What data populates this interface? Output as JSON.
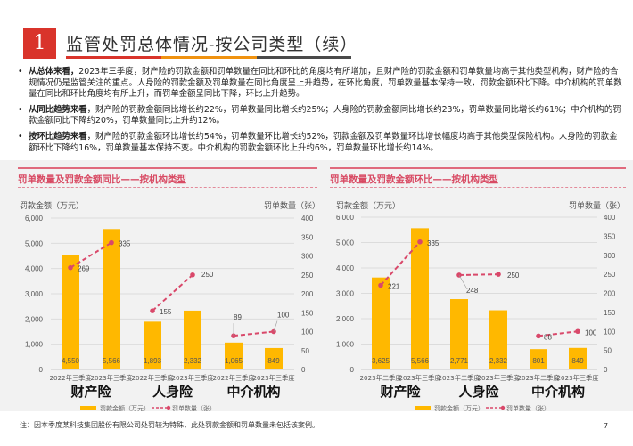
{
  "header": {
    "section_number": "1",
    "title": "监管处罚总体情况-按公司类型（续）",
    "bar_colors": [
      "#d9342b",
      "#f0920f",
      "#4a4a4a"
    ]
  },
  "bullets": [
    {
      "lead": "从总体来看，",
      "text": "2023年三季度，财产险的罚款金额和罚单数量在同比和环比的角度均有所增加，且财产险的罚款金额和罚单数量均高于其他类型机构，财产险的合规情况仍是监管关注的重点。人身险的罚款金额及罚单数量在同比角度呈上升趋势，在环比角度，罚单数量基本保持一致，罚款金额环比下降。中介机构的罚单数量在同比和环比角度均有所上升，而罚单金额呈同比下降，环比上升趋势。"
    },
    {
      "lead": "从同比趋势来看",
      "text": "，财产险的罚款金额同比增长约22%，罚单数量同比增长约25%；人身险的罚款金额同比增长约23%，罚单数量同比增长约61%；中介机构的罚款金额同比下降约20%，罚单数量同比上升约12%。"
    },
    {
      "lead": "按环比趋势来看",
      "text": "，财产险的罚款金额环比增长约54%，罚单数量环比增长约52%，罚款金额及罚单数量环比增长幅度均高于其他类型保险机构。人身险的罚款金额环比下降约16%，罚单数量基本保持不变。中介机构的罚款金额环比上升约6%，罚单数量环比增长约14%。"
    }
  ],
  "footer": {
    "note": "注：因本季度某科技集团股份有限公司处罚较为特殊，此处罚款金额和罚单数量未包括该案例。",
    "page_number": "7"
  },
  "colors": {
    "bar": "#ffb800",
    "line": "#d9486a",
    "title_pink": "#d84a63",
    "grid": "#dcdcdc"
  },
  "chart_data": [
    {
      "type": "bar+line",
      "title": "罚单数量及罚款金额同比——按机构类型",
      "ylabel_left": "罚款金额（万元）",
      "ylabel_right": "罚单数量（张）",
      "ylim_left": [
        0,
        6000
      ],
      "ylim_right": [
        0,
        400
      ],
      "yticks_left": [
        "0",
        "1,000",
        "2,000",
        "3,000",
        "4,000",
        "5,000",
        "6,000"
      ],
      "yticks_right": [
        "0",
        "50",
        "100",
        "150",
        "200",
        "250",
        "300",
        "350",
        "400"
      ],
      "grid": true,
      "categories": [
        "2022年三季度",
        "2023年三季度",
        "2022年三季度",
        "2023年三季度",
        "2022年三季度",
        "2023年三季度"
      ],
      "groups": [
        "财产险",
        "人身险",
        "中介机构"
      ],
      "series": [
        {
          "name": "罚款金额（万元）",
          "kind": "bar",
          "axis": "left",
          "values": [
            4550,
            5566,
            1893,
            2332,
            1065,
            849
          ],
          "labels": [
            "4,550",
            "5,566",
            "1,893",
            "2,332",
            "1,065",
            "849"
          ]
        },
        {
          "name": "罚单数量（张）",
          "kind": "line",
          "axis": "right",
          "values": [
            269,
            335,
            155,
            250,
            89,
            100
          ],
          "labels": [
            "269",
            "335",
            "155",
            "250",
            "89",
            "100"
          ]
        }
      ],
      "legend": "bottom"
    },
    {
      "type": "bar+line",
      "title": "罚单数量及罚款金额环比——按机构类型",
      "ylabel_left": "罚款金额（万元）",
      "ylabel_right": "罚单数量（张）",
      "ylim_left": [
        0,
        6000
      ],
      "ylim_right": [
        0,
        400
      ],
      "yticks_left": [
        "0",
        "1,000",
        "2,000",
        "3,000",
        "4,000",
        "5,000",
        "6,000"
      ],
      "yticks_right": [
        "0",
        "50",
        "100",
        "150",
        "200",
        "250",
        "300",
        "350",
        "400"
      ],
      "grid": true,
      "categories": [
        "2023年二季度",
        "2023年三季度",
        "2023年二季度",
        "2023年三季度",
        "2023年二季度",
        "2023年三季度"
      ],
      "groups": [
        "财产险",
        "人身险",
        "中介机构"
      ],
      "series": [
        {
          "name": "罚款金额（万元）",
          "kind": "bar",
          "axis": "left",
          "values": [
            3625,
            5566,
            2771,
            2332,
            801,
            849
          ],
          "labels": [
            "3,625",
            "5,566",
            "2,771",
            "2,332",
            "801",
            "849"
          ]
        },
        {
          "name": "罚单数量（张）",
          "kind": "line",
          "axis": "right",
          "values": [
            221,
            335,
            248,
            250,
            88,
            100
          ],
          "labels": [
            "221",
            "335",
            "248",
            "250",
            "88",
            "100"
          ]
        }
      ],
      "legend": "bottom"
    }
  ]
}
